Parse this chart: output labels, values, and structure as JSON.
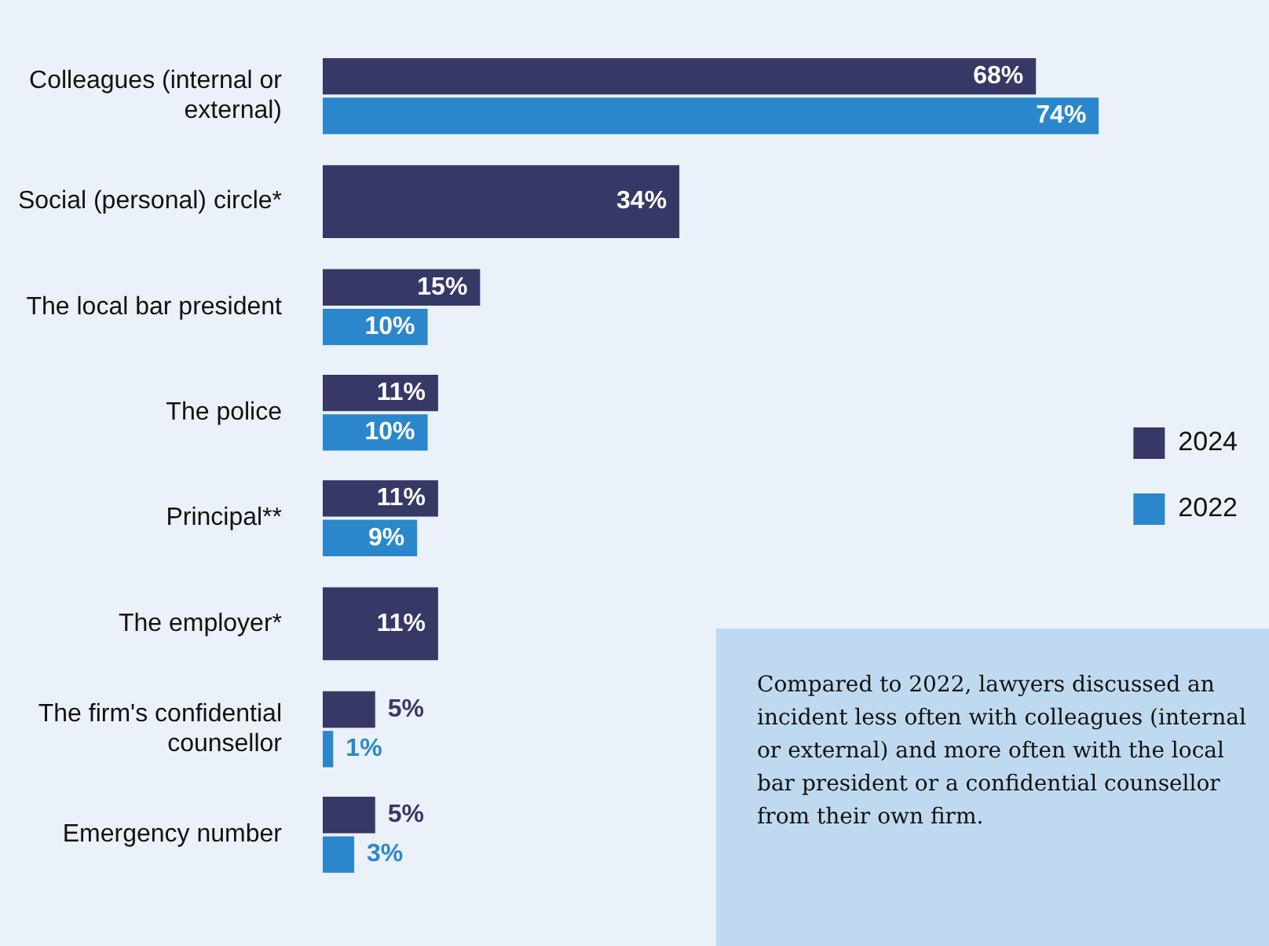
{
  "chart_data": {
    "type": "bar",
    "orientation": "horizontal",
    "categories": [
      "Colleagues (internal or external)",
      "Social (personal) circle*",
      "The local bar president",
      "The police",
      "Principal**",
      "The employer*",
      "The firm's confidential counsellor",
      "Emergency number"
    ],
    "series": [
      {
        "name": "2024",
        "color": "#363866",
        "values": [
          68,
          34,
          15,
          11,
          11,
          11,
          5,
          5
        ],
        "value_labels": [
          "68%",
          "34%",
          "15%",
          "11%",
          "11%",
          "11%",
          "5%",
          "5%"
        ]
      },
      {
        "name": "2022",
        "color": "#2b87cc",
        "values": [
          74,
          null,
          10,
          10,
          9,
          null,
          1,
          3
        ],
        "value_labels": [
          "74%",
          null,
          "10%",
          "10%",
          "9%",
          null,
          "1%",
          "3%"
        ]
      }
    ],
    "legend": "right",
    "grid": false,
    "annotations": [
      "Compared to 2022, lawyers discussed an incident less often with colleagues (internal or external) and more often with the local bar president or a confidential counsellor from their own firm."
    ]
  }
}
